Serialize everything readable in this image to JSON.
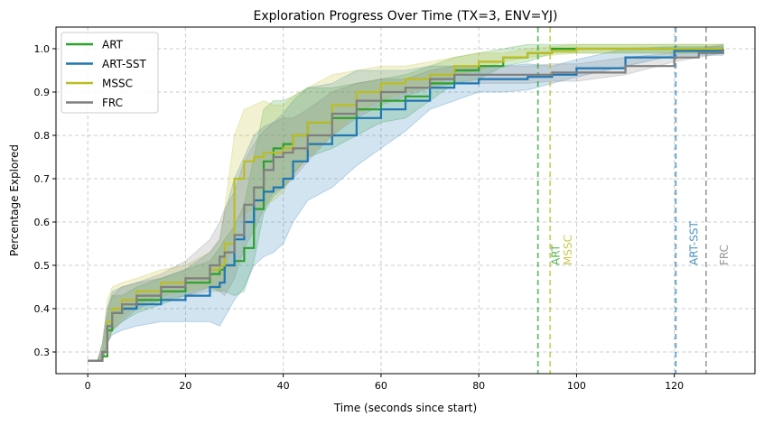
{
  "chart_data": {
    "type": "line",
    "title": "Exploration Progress Over Time (TX=3, ENV=YJ)",
    "xlabel": "Time (seconds since start)",
    "ylabel": "Percentage Explored",
    "xlim": [
      -6.5,
      136.5
    ],
    "ylim": [
      0.25,
      1.05
    ],
    "xticks": [
      0,
      20,
      40,
      60,
      80,
      100,
      120
    ],
    "yticks": [
      0.3,
      0.4,
      0.5,
      0.6,
      0.7,
      0.8,
      0.9,
      1.0
    ],
    "ytick_labels": [
      "0.3",
      "0.4",
      "0.5",
      "0.6",
      "0.7",
      "0.8",
      "0.9",
      "1.0"
    ],
    "grid": true,
    "legend_position": "top-left",
    "x": [
      0,
      2,
      3,
      4,
      5,
      7,
      10,
      15,
      20,
      25,
      27,
      28,
      30,
      32,
      34,
      36,
      38,
      40,
      42,
      45,
      50,
      55,
      60,
      65,
      70,
      75,
      80,
      85,
      90,
      95,
      100,
      110,
      120,
      125,
      130
    ],
    "series": [
      {
        "name": "ART",
        "color": "#2ca02c",
        "values": [
          0.28,
          0.28,
          0.29,
          0.35,
          0.39,
          0.4,
          0.42,
          0.44,
          0.46,
          0.48,
          0.49,
          0.5,
          0.51,
          0.54,
          0.63,
          0.74,
          0.77,
          0.78,
          0.8,
          0.83,
          0.84,
          0.86,
          0.88,
          0.89,
          0.92,
          0.95,
          0.96,
          0.98,
          0.99,
          1.0,
          1.0,
          1.0,
          1.0,
          1.0,
          1.0
        ],
        "spread": [
          0,
          0,
          0.01,
          0.03,
          0.04,
          0.03,
          0.03,
          0.03,
          0.03,
          0.03,
          0.05,
          0.06,
          0.08,
          0.1,
          0.12,
          0.12,
          0.11,
          0.1,
          0.09,
          0.08,
          0.07,
          0.06,
          0.05,
          0.05,
          0.04,
          0.03,
          0.03,
          0.02,
          0.02,
          0.01,
          0.01,
          0.01,
          0.01,
          0.01,
          0.01
        ]
      },
      {
        "name": "ART-SST",
        "color": "#1f77b4",
        "values": [
          0.28,
          0.28,
          0.3,
          0.36,
          0.39,
          0.4,
          0.41,
          0.42,
          0.43,
          0.45,
          0.46,
          0.5,
          0.56,
          0.6,
          0.65,
          0.67,
          0.68,
          0.7,
          0.74,
          0.78,
          0.8,
          0.84,
          0.86,
          0.88,
          0.91,
          0.92,
          0.93,
          0.93,
          0.935,
          0.94,
          0.955,
          0.98,
          0.995,
          0.995,
          0.995
        ],
        "spread": [
          0,
          0,
          0.02,
          0.04,
          0.05,
          0.05,
          0.05,
          0.05,
          0.06,
          0.08,
          0.1,
          0.12,
          0.14,
          0.15,
          0.15,
          0.15,
          0.15,
          0.15,
          0.14,
          0.13,
          0.12,
          0.11,
          0.09,
          0.07,
          0.05,
          0.04,
          0.03,
          0.03,
          0.03,
          0.02,
          0.02,
          0.02,
          0.01,
          0.01,
          0.01
        ]
      },
      {
        "name": "MSSC",
        "color": "#bcbd22",
        "values": [
          0.28,
          0.28,
          0.3,
          0.37,
          0.4,
          0.42,
          0.44,
          0.46,
          0.47,
          0.49,
          0.5,
          0.55,
          0.7,
          0.74,
          0.75,
          0.76,
          0.76,
          0.77,
          0.8,
          0.83,
          0.87,
          0.9,
          0.92,
          0.93,
          0.94,
          0.96,
          0.97,
          0.98,
          0.99,
          0.995,
          1.0,
          1.0,
          1.0,
          1.0,
          1.0
        ],
        "spread": [
          0,
          0,
          0.02,
          0.05,
          0.05,
          0.04,
          0.03,
          0.03,
          0.03,
          0.04,
          0.06,
          0.08,
          0.1,
          0.12,
          0.12,
          0.12,
          0.11,
          0.1,
          0.09,
          0.08,
          0.07,
          0.05,
          0.04,
          0.03,
          0.03,
          0.02,
          0.02,
          0.01,
          0.01,
          0.01,
          0.01,
          0.01,
          0.01,
          0.01,
          0.01
        ]
      },
      {
        "name": "FRC",
        "color": "#7f7f7f",
        "values": [
          0.28,
          0.28,
          0.3,
          0.36,
          0.39,
          0.41,
          0.43,
          0.45,
          0.47,
          0.5,
          0.52,
          0.53,
          0.57,
          0.64,
          0.68,
          0.72,
          0.75,
          0.76,
          0.77,
          0.8,
          0.85,
          0.88,
          0.9,
          0.91,
          0.93,
          0.94,
          0.94,
          0.94,
          0.94,
          0.945,
          0.945,
          0.96,
          0.98,
          0.99,
          1.0
        ],
        "spread": [
          0,
          0,
          0.02,
          0.04,
          0.04,
          0.04,
          0.03,
          0.03,
          0.04,
          0.06,
          0.08,
          0.1,
          0.1,
          0.1,
          0.1,
          0.09,
          0.08,
          0.08,
          0.07,
          0.06,
          0.05,
          0.04,
          0.03,
          0.02,
          0.02,
          0.02,
          0.02,
          0.02,
          0.02,
          0.02,
          0.02,
          0.02,
          0.01,
          0.01,
          0.01
        ]
      }
    ],
    "annotations": [
      {
        "label": "ART",
        "x": 92.1,
        "color": "#2ca02c"
      },
      {
        "label": "MSSC",
        "x": 94.6,
        "color": "#bcbd22"
      },
      {
        "label": "ART-SST",
        "x": 120.3,
        "color": "#1f77b4"
      },
      {
        "label": "FRC",
        "x": 126.5,
        "color": "#7f7f7f"
      }
    ]
  }
}
